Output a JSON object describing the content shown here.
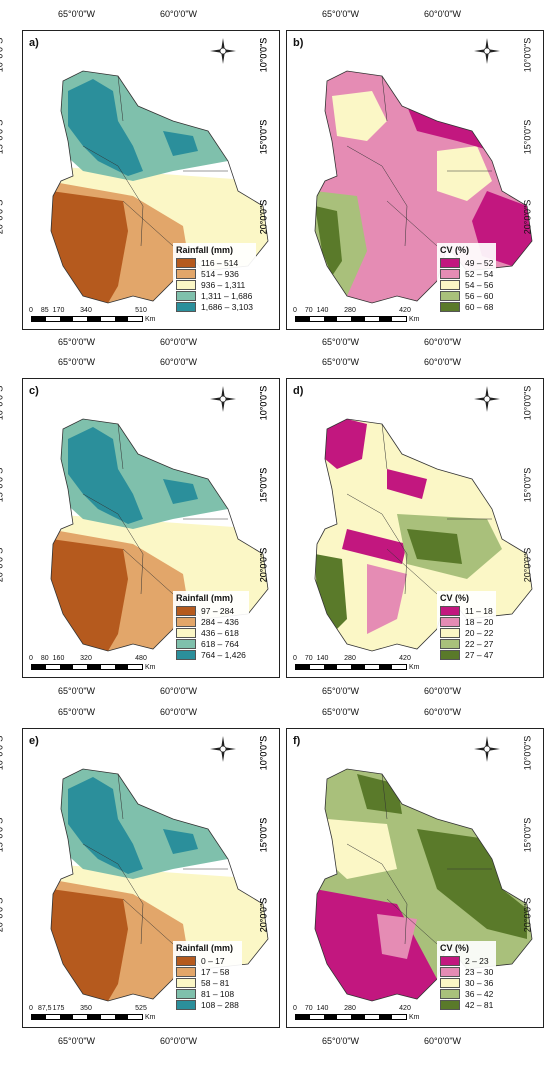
{
  "panels": [
    {
      "letter": "a)",
      "legend_title": "Rainfall (mm)",
      "classes": [
        "116 – 514",
        "514 – 936",
        "936 – 1,311",
        "1,311 – 1,686",
        "1,686 – 3,103"
      ],
      "colors": [
        "#b55a1e",
        "#e2a66a",
        "#fbf7c6",
        "#7fc0ac",
        "#2b8f9b"
      ],
      "scale_ticks": [
        "0",
        "85",
        "170",
        "340",
        "510"
      ],
      "scale_unit": "Km",
      "lat_labels": [
        "10°0'0\"S",
        "15°0'0\"S",
        "20°0'0\"S"
      ],
      "lon_labels": [
        "65°0'0\"W",
        "60°0'0\"W"
      ]
    },
    {
      "letter": "b)",
      "legend_title": "CV (%)",
      "classes": [
        "49 – 52",
        "52 – 54",
        "54 – 56",
        "56 – 60",
        "60 – 68"
      ],
      "colors": [
        "#c2177f",
        "#e58cb4",
        "#fbf7c6",
        "#a9c07b",
        "#5a7a2a"
      ],
      "scale_ticks": [
        "0",
        "70",
        "140",
        "280",
        "420"
      ],
      "scale_unit": "Km",
      "lat_labels": [
        "10°0'0\"S",
        "15°0'0\"S",
        "20°0'0\"S"
      ],
      "lon_labels": [
        "65°0'0\"W",
        "60°0'0\"W"
      ]
    },
    {
      "letter": "c)",
      "legend_title": "Rainfall (mm)",
      "classes": [
        "97 – 284",
        "284 – 436",
        "436 – 618",
        "618 – 764",
        "764 – 1,426"
      ],
      "colors": [
        "#b55a1e",
        "#e2a66a",
        "#fbf7c6",
        "#7fc0ac",
        "#2b8f9b"
      ],
      "scale_ticks": [
        "0",
        "80",
        "160",
        "320",
        "480"
      ],
      "scale_unit": "Km",
      "lat_labels": [
        "10°0'0\"S",
        "15°0'0\"S",
        "20°0'0\"S"
      ],
      "lon_labels": [
        "65°0'0\"W",
        "60°0'0\"W"
      ]
    },
    {
      "letter": "d)",
      "legend_title": "CV (%)",
      "classes": [
        "11 – 18",
        "18 – 20",
        "20 – 22",
        "22 – 27",
        "27 – 47"
      ],
      "colors": [
        "#c2177f",
        "#e58cb4",
        "#fbf7c6",
        "#a9c07b",
        "#5a7a2a"
      ],
      "scale_ticks": [
        "0",
        "70",
        "140",
        "280",
        "420"
      ],
      "scale_unit": "Km",
      "lat_labels": [
        "10°0'0\"S",
        "15°0'0\"S",
        "20°0'0\"S"
      ],
      "lon_labels": [
        "65°0'0\"W",
        "60°0'0\"W"
      ]
    },
    {
      "letter": "e)",
      "legend_title": "Rainfall (mm)",
      "classes": [
        "0 – 17",
        "17 – 58",
        "58 – 81",
        "81 – 108",
        "108 – 288"
      ],
      "colors": [
        "#b55a1e",
        "#e2a66a",
        "#fbf7c6",
        "#7fc0ac",
        "#2b8f9b"
      ],
      "scale_ticks": [
        "0",
        "87,5",
        "175",
        "350",
        "525"
      ],
      "scale_unit": "Km",
      "lat_labels": [
        "10°0'0\"S",
        "15°0'0\"S",
        "20°0'0\"S"
      ],
      "lon_labels": [
        "65°0'0\"W",
        "60°0'0\"W"
      ]
    },
    {
      "letter": "f)",
      "legend_title": "CV (%)",
      "classes": [
        "2 – 23",
        "23 – 30",
        "30 – 36",
        "36 – 42",
        "42 – 81"
      ],
      "colors": [
        "#c2177f",
        "#e58cb4",
        "#fbf7c6",
        "#a9c07b",
        "#5a7a2a"
      ],
      "scale_ticks": [
        "0",
        "70",
        "140",
        "280",
        "420"
      ],
      "scale_unit": "Km",
      "lat_labels": [
        "10°0'0\"S",
        "15°0'0\"S",
        "20°0'0\"S"
      ],
      "lon_labels": [
        "65°0'0\"W",
        "60°0'0\"W"
      ]
    }
  ]
}
